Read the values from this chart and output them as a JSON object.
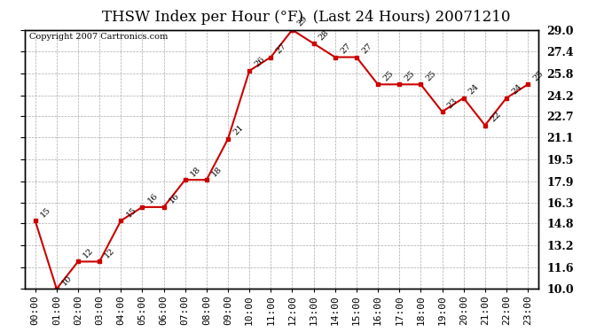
{
  "title": "THSW Index per Hour (°F)  (Last 24 Hours) 20071210",
  "copyright": "Copyright 2007 Cartronics.com",
  "hours": [
    "00:00",
    "01:00",
    "02:00",
    "03:00",
    "04:00",
    "05:00",
    "06:00",
    "07:00",
    "08:00",
    "09:00",
    "10:00",
    "11:00",
    "12:00",
    "13:00",
    "14:00",
    "15:00",
    "16:00",
    "17:00",
    "18:00",
    "19:00",
    "20:00",
    "21:00",
    "22:00",
    "23:00"
  ],
  "values": [
    15,
    10,
    12,
    12,
    15,
    16,
    16,
    18,
    18,
    21,
    26,
    27,
    29,
    28,
    27,
    27,
    25,
    25,
    25,
    23,
    24,
    22,
    24,
    25
  ],
  "line_color": "#cc0000",
  "marker_color": "#cc0000",
  "bg_color": "#ffffff",
  "plot_bg_color": "#ffffff",
  "grid_color": "#aaaaaa",
  "border_color": "#000000",
  "ylim_min": 10.0,
  "ylim_max": 29.0,
  "yticks": [
    10.0,
    11.6,
    13.2,
    14.8,
    16.3,
    17.9,
    19.5,
    21.1,
    22.7,
    24.2,
    25.8,
    27.4,
    29.0
  ],
  "title_fontsize": 12,
  "label_fontsize": 8,
  "annot_fontsize": 7,
  "copyright_fontsize": 7,
  "yticklabels": [
    "10.0",
    "11.6",
    "13.2",
    "14.8",
    "16.3",
    "17.9",
    "19.5",
    "21.1",
    "22.7",
    "24.2",
    "25.8",
    "27.4",
    "29.0"
  ]
}
